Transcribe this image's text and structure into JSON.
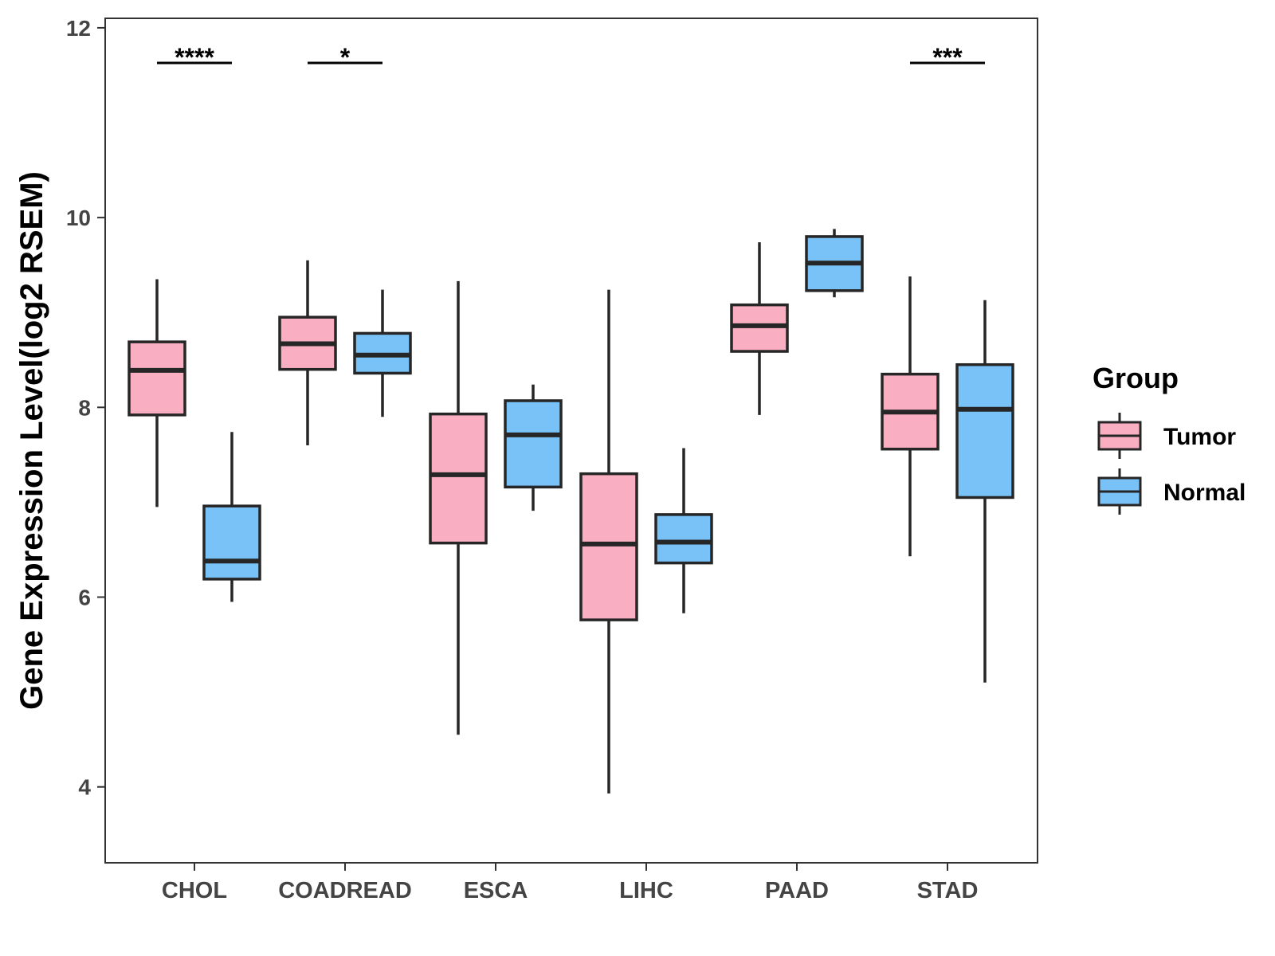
{
  "chart_data": {
    "type": "boxplot",
    "title": "",
    "xlabel": "",
    "ylabel": "Gene Expression Level(log2 RSEM)",
    "ylim": [
      3.2,
      12.1
    ],
    "y_ticks": [
      4,
      6,
      8,
      10,
      12
    ],
    "categories": [
      "CHOL",
      "COADREAD",
      "ESCA",
      "LIHC",
      "PAAD",
      "STAD"
    ],
    "grid": false,
    "legend": {
      "title": "Group",
      "position": "right"
    },
    "series": [
      {
        "name": "Tumor",
        "color": "#F9AFC1",
        "boxes": [
          {
            "min": 6.95,
            "q1": 7.92,
            "median": 8.39,
            "q3": 8.69,
            "max": 9.35
          },
          {
            "min": 7.6,
            "q1": 8.4,
            "median": 8.67,
            "q3": 8.95,
            "max": 9.55
          },
          {
            "min": 4.55,
            "q1": 6.57,
            "median": 7.29,
            "q3": 7.93,
            "max": 9.33
          },
          {
            "min": 3.93,
            "q1": 5.76,
            "median": 6.56,
            "q3": 7.3,
            "max": 9.24
          },
          {
            "min": 7.92,
            "q1": 8.59,
            "median": 8.86,
            "q3": 9.08,
            "max": 9.74
          },
          {
            "min": 6.43,
            "q1": 7.56,
            "median": 7.95,
            "q3": 8.35,
            "max": 9.38
          }
        ]
      },
      {
        "name": "Normal",
        "color": "#79C2F8",
        "boxes": [
          {
            "min": 5.95,
            "q1": 6.19,
            "median": 6.38,
            "q3": 6.96,
            "max": 7.74
          },
          {
            "min": 7.9,
            "q1": 8.36,
            "median": 8.55,
            "q3": 8.78,
            "max": 9.24
          },
          {
            "min": 6.91,
            "q1": 7.16,
            "median": 7.71,
            "q3": 8.07,
            "max": 8.24
          },
          {
            "min": 5.83,
            "q1": 6.36,
            "median": 6.58,
            "q3": 6.87,
            "max": 7.57
          },
          {
            "min": 9.16,
            "q1": 9.23,
            "median": 9.52,
            "q3": 9.8,
            "max": 9.88
          },
          {
            "min": 5.1,
            "q1": 7.05,
            "median": 7.98,
            "q3": 8.45,
            "max": 9.13
          }
        ]
      }
    ],
    "significance": [
      {
        "category": "CHOL",
        "label": "****",
        "y": 11.63
      },
      {
        "category": "COADREAD",
        "label": "*",
        "y": 11.63
      },
      {
        "category": "STAD",
        "label": "***",
        "y": 11.63
      }
    ]
  },
  "colors": {
    "tumor": "#F9AFC1",
    "normal": "#79C2F8",
    "outline": "#262626",
    "axis": "#333333"
  }
}
